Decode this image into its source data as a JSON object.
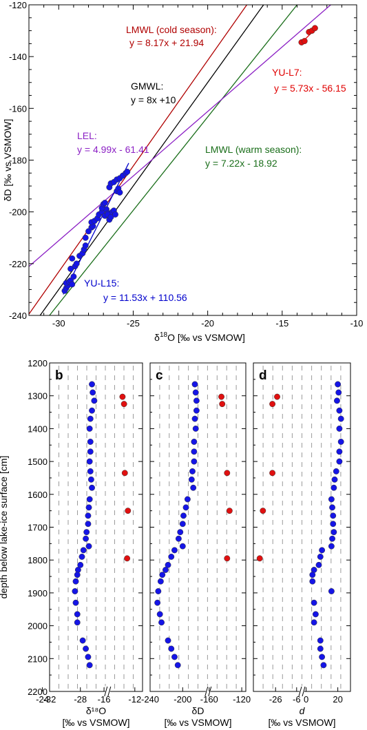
{
  "chart_data": [
    {
      "id": "top",
      "type": "scatter",
      "xlabel": {
        "main": "δ",
        "sup": "18",
        "rest": "O [‰ vs VSMOW]"
      },
      "ylabel": "δD [‰ vs VSMOW]",
      "xlim": [
        -32,
        -10
      ],
      "ylim": [
        -240,
        -120
      ],
      "x_ticks": [
        -30,
        -25,
        -20,
        -15,
        -10
      ],
      "y_ticks": [
        -240,
        -220,
        -200,
        -180,
        -160,
        -140,
        -120
      ],
      "grid": false,
      "lines": [
        {
          "name": "LMWL (cold season):",
          "equation": "y = 8.17x + 21.94",
          "slope": 8.17,
          "intercept": 21.94,
          "color": "#b00000"
        },
        {
          "name": "GMWL:",
          "equation": "y = 8x +10",
          "slope": 8,
          "intercept": 10,
          "color": "#000000"
        },
        {
          "name": "LMWL (warm season):",
          "equation": "y = 7.22x - 18.92",
          "slope": 7.22,
          "intercept": -18.92,
          "color": "#1a6e1a"
        },
        {
          "name": "LEL:",
          "equation": "y = 4.99x - 61.41",
          "slope": 4.99,
          "intercept": -61.41,
          "color": "#8b1fc4"
        },
        {
          "name": "YU-L7:",
          "equation": "y = 5.73x - 56.15",
          "slope": 5.73,
          "intercept": -56.15,
          "color": "#e00000",
          "x_range": [
            -13.8,
            -12.7
          ]
        },
        {
          "name": "YU-L15:",
          "equation": "y = 11.53x + 110.56",
          "slope": 11.53,
          "intercept": 110.56,
          "color": "#0000cc",
          "x_range": [
            -29.7,
            -25.3
          ]
        }
      ],
      "series": [
        {
          "name": "YU-L15",
          "color": "#1515e6",
          "points": [
            [
              -29.6,
              -230.5
            ],
            [
              -29.5,
              -229.5
            ],
            [
              -29.4,
              -228.5
            ],
            [
              -29.5,
              -227.5
            ],
            [
              -29.3,
              -227
            ],
            [
              -29.2,
              -226.5
            ],
            [
              -29.1,
              -228
            ],
            [
              -29.0,
              -225
            ],
            [
              -29.2,
              -222
            ],
            [
              -29.1,
              -218
            ],
            [
              -28.9,
              -221
            ],
            [
              -28.8,
              -220
            ],
            [
              -28.6,
              -217
            ],
            [
              -28.4,
              -216
            ],
            [
              -28.3,
              -214.5
            ],
            [
              -28.2,
              -213
            ],
            [
              -28.2,
              -210
            ],
            [
              -28.0,
              -207.5
            ],
            [
              -27.8,
              -206
            ],
            [
              -27.7,
              -205.5
            ],
            [
              -27.8,
              -204
            ],
            [
              -27.6,
              -203.5
            ],
            [
              -27.4,
              -202.5
            ],
            [
              -27.3,
              -201
            ],
            [
              -27.1,
              -200
            ],
            [
              -26.9,
              -201.5
            ],
            [
              -26.8,
              -199
            ],
            [
              -26.7,
              -200.5
            ],
            [
              -27.1,
              -198.5
            ],
            [
              -27.0,
              -197
            ],
            [
              -26.9,
              -196.5
            ],
            [
              -26.7,
              -201
            ],
            [
              -26.6,
              -203
            ],
            [
              -26.5,
              -202
            ],
            [
              -26.4,
              -200
            ],
            [
              -26.3,
              -199.5
            ],
            [
              -26.2,
              -201
            ],
            [
              -26.1,
              -192
            ],
            [
              -26.0,
              -191
            ],
            [
              -25.9,
              -192.5
            ],
            [
              -26.6,
              -190.5
            ],
            [
              -26.5,
              -189
            ],
            [
              -26.3,
              -188.5
            ],
            [
              -26.1,
              -187.5
            ],
            [
              -25.9,
              -187
            ],
            [
              -25.7,
              -186
            ],
            [
              -25.5,
              -185
            ],
            [
              -25.4,
              -184.5
            ]
          ]
        },
        {
          "name": "YU-L7",
          "color": "#e01010",
          "points": [
            [
              -13.7,
              -134.5
            ],
            [
              -13.5,
              -134
            ],
            [
              -13.2,
              -130.5
            ],
            [
              -13.0,
              -130
            ],
            [
              -12.8,
              -129
            ]
          ]
        }
      ]
    },
    {
      "id": "b",
      "type": "scatter",
      "panel_label": "b",
      "xlabel": [
        "δ¹⁸O",
        "[‰ vs VSMOW]"
      ],
      "ylabel": "depth below lake-ice surface [cm]",
      "ylim": [
        1200,
        2200
      ],
      "y_ticks": [
        1200,
        1300,
        1400,
        1500,
        1600,
        1700,
        1800,
        1900,
        2000,
        2100,
        2200
      ],
      "x_segments": [
        [
          -32,
          -24.6
        ],
        [
          -15.4,
          -11
        ]
      ],
      "x_ticks": [
        -32,
        -28,
        -24,
        -16,
        -12
      ],
      "x_tick_labels": [
        "-32",
        "-28",
        "-24",
        "-16",
        "-12"
      ],
      "grid": "vertical-dashed",
      "series": [
        {
          "name": "YU-L15",
          "color": "#1515e6",
          "points": [
            [
              -26.5,
              1265
            ],
            [
              -26.4,
              1290
            ],
            [
              -26.2,
              1315
            ],
            [
              -26.5,
              1345
            ],
            [
              -26.7,
              1370
            ],
            [
              -26.8,
              1400
            ],
            [
              -26.7,
              1440
            ],
            [
              -26.7,
              1470
            ],
            [
              -26.8,
              1500
            ],
            [
              -26.7,
              1530
            ],
            [
              -26.6,
              1555
            ],
            [
              -26.5,
              1580
            ],
            [
              -26.8,
              1615
            ],
            [
              -26.9,
              1640
            ],
            [
              -27.0,
              1665
            ],
            [
              -27.0,
              1690
            ],
            [
              -27.2,
              1715
            ],
            [
              -27.3,
              1735
            ],
            [
              -26.9,
              1758
            ],
            [
              -27.6,
              1770
            ],
            [
              -27.8,
              1790
            ],
            [
              -28.0,
              1815
            ],
            [
              -28.3,
              1830
            ],
            [
              -28.4,
              1845
            ],
            [
              -28.6,
              1865
            ],
            [
              -28.7,
              1895
            ],
            [
              -28.6,
              1930
            ],
            [
              -28.4,
              1965
            ],
            [
              -28.4,
              1990
            ],
            [
              -27.7,
              2045
            ],
            [
              -27.3,
              2070
            ],
            [
              -27.0,
              2095
            ],
            [
              -26.8,
              2120
            ]
          ]
        },
        {
          "name": "YU-L7",
          "color": "#e01010",
          "points": [
            [
              -13.6,
              1303
            ],
            [
              -13.4,
              1325
            ],
            [
              -13.3,
              1535
            ],
            [
              -12.9,
              1650
            ],
            [
              -13.0,
              1795
            ]
          ]
        }
      ]
    },
    {
      "id": "c",
      "type": "scatter",
      "panel_label": "c",
      "xlabel": [
        "δD",
        "[‰ vs VSMOW]"
      ],
      "ylim": [
        1200,
        2200
      ],
      "y_ticks": [
        1200,
        1300,
        1400,
        1500,
        1600,
        1700,
        1800,
        1900,
        2000,
        2100,
        2200
      ],
      "x_segments": [
        [
          -240,
          -170
        ],
        [
          -160,
          -115
        ]
      ],
      "x_ticks": [
        -240,
        -200,
        -160,
        -120
      ],
      "x_tick_labels": [
        "-240",
        "-200",
        "-160",
        "-120"
      ],
      "grid": "vertical-dashed",
      "series": [
        {
          "name": "YU-L15",
          "color": "#1515e6",
          "points": [
            [
              -185,
              1265
            ],
            [
              -184,
              1290
            ],
            [
              -183,
              1315
            ],
            [
              -183,
              1345
            ],
            [
              -185,
              1370
            ],
            [
              -184,
              1400
            ],
            [
              -186,
              1440
            ],
            [
              -186,
              1470
            ],
            [
              -186,
              1500
            ],
            [
              -188,
              1530
            ],
            [
              -189,
              1555
            ],
            [
              -187,
              1580
            ],
            [
              -194,
              1615
            ],
            [
              -196,
              1640
            ],
            [
              -199,
              1665
            ],
            [
              -200,
              1690
            ],
            [
              -203,
              1715
            ],
            [
              -205,
              1735
            ],
            [
              -200,
              1758
            ],
            [
              -210,
              1770
            ],
            [
              -214,
              1790
            ],
            [
              -218,
              1815
            ],
            [
              -221,
              1830
            ],
            [
              -225,
              1845
            ],
            [
              -227,
              1865
            ],
            [
              -230,
              1895
            ],
            [
              -231,
              1930
            ],
            [
              -228,
              1965
            ],
            [
              -226,
              1990
            ],
            [
              -218,
              2045
            ],
            [
              -214,
              2070
            ],
            [
              -210,
              2095
            ],
            [
              -206,
              2120
            ]
          ]
        },
        {
          "name": "YU-L7",
          "color": "#e01010",
          "points": [
            [
              -145,
              1303
            ],
            [
              -144,
              1325
            ],
            [
              -138,
              1535
            ],
            [
              -135,
              1650
            ],
            [
              -138,
              1795
            ]
          ]
        }
      ]
    },
    {
      "id": "d",
      "type": "scatter",
      "panel_label": "d",
      "xlabel": [
        "d",
        "[‰ vs VSMOW]"
      ],
      "ylim": [
        1200,
        2200
      ],
      "y_ticks": [
        1200,
        1300,
        1400,
        1500,
        1600,
        1700,
        1800,
        1900,
        2000,
        2100,
        2200
      ],
      "x_segments": [
        [
          -40,
          -10
        ],
        [
          -2,
          28
        ]
      ],
      "x_ticks": [
        -26,
        -6,
        0,
        20
      ],
      "x_tick_labels": [
        "-26",
        "-6",
        "0",
        "20"
      ],
      "grid": "vertical-dashed",
      "series": [
        {
          "name": "YU-L15",
          "color": "#1515e6",
          "points": [
            [
              20,
              1265
            ],
            [
              20.5,
              1290
            ],
            [
              19.5,
              1315
            ],
            [
              21,
              1345
            ],
            [
              22,
              1370
            ],
            [
              21,
              1400
            ],
            [
              22,
              1440
            ],
            [
              21,
              1470
            ],
            [
              21,
              1500
            ],
            [
              19,
              1530
            ],
            [
              18,
              1555
            ],
            [
              17.5,
              1580
            ],
            [
              16,
              1615
            ],
            [
              16.5,
              1640
            ],
            [
              17,
              1665
            ],
            [
              17,
              1690
            ],
            [
              17.5,
              1715
            ],
            [
              16.5,
              1735
            ],
            [
              16,
              1758
            ],
            [
              10,
              1770
            ],
            [
              9,
              1790
            ],
            [
              8,
              1815
            ],
            [
              5,
              1830
            ],
            [
              4,
              1845
            ],
            [
              4,
              1865
            ],
            [
              16,
              1895
            ],
            [
              5,
              1930
            ],
            [
              6,
              1965
            ],
            [
              5,
              1990
            ],
            [
              9,
              2045
            ],
            [
              9,
              2070
            ],
            [
              10,
              2095
            ],
            [
              11,
              2120
            ]
          ]
        },
        {
          "name": "YU-L7",
          "color": "#e01010",
          "points": [
            [
              -25,
              1303
            ],
            [
              -28,
              1325
            ],
            [
              -28,
              1535
            ],
            [
              -34,
              1650
            ],
            [
              -36,
              1795
            ]
          ]
        }
      ]
    }
  ]
}
